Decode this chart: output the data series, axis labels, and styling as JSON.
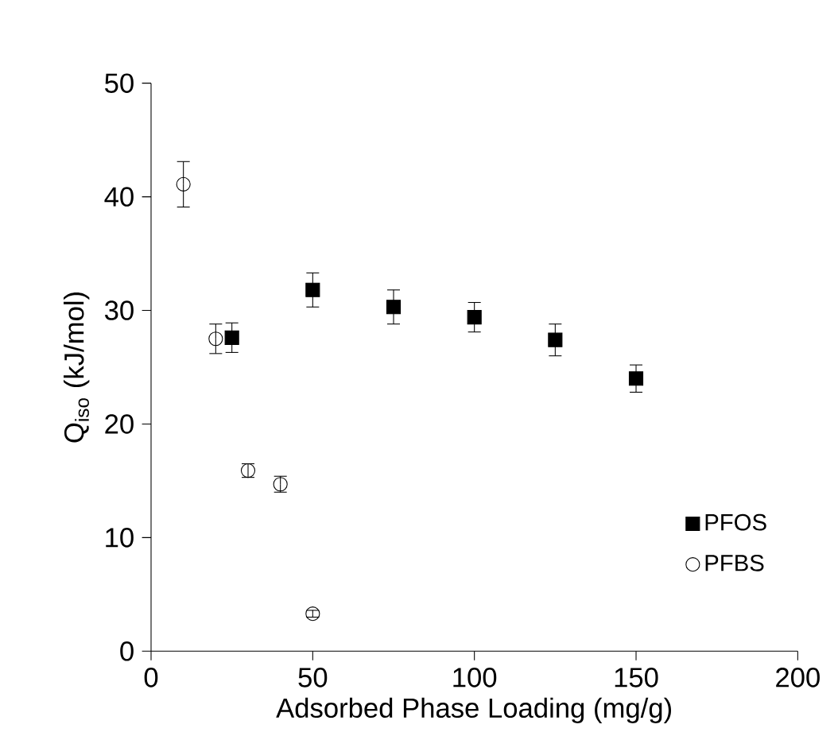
{
  "chart_data": {
    "type": "scatter",
    "xlabel": "Adsorbed Phase Loading (mg/g)",
    "ylabel": "Q$_{iso}$ (kJ/mol)",
    "xlim": [
      0,
      200
    ],
    "ylim": [
      0,
      50
    ],
    "xticks": [
      0,
      50,
      100,
      150,
      200
    ],
    "yticks": [
      0,
      10,
      20,
      30,
      40,
      50
    ],
    "grid": false,
    "legend": "bottom right",
    "series": [
      {
        "name": "PFOS",
        "color": "#000000",
        "marker": "square",
        "x": [
          25,
          50,
          75,
          100,
          125,
          150
        ],
        "values": [
          27.6,
          31.8,
          30.3,
          29.4,
          27.4,
          24.0
        ],
        "errors": [
          1.3,
          1.5,
          1.5,
          1.3,
          1.4,
          1.2
        ]
      },
      {
        "name": "PFBS",
        "color": "#000000",
        "marker": "circle",
        "x": [
          10,
          20,
          30,
          40,
          50
        ],
        "values": [
          41.1,
          27.5,
          15.9,
          14.7,
          3.3
        ],
        "errors": [
          2.0,
          1.3,
          0.6,
          0.7,
          0.3
        ]
      }
    ]
  }
}
